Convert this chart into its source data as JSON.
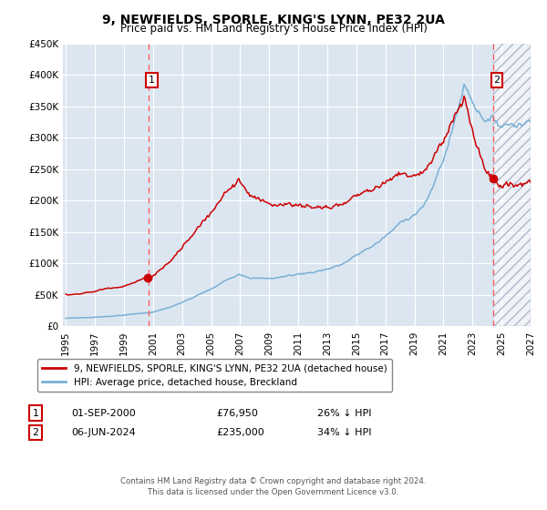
{
  "title": "9, NEWFIELDS, SPORLE, KING'S LYNN, PE32 2UA",
  "subtitle": "Price paid vs. HM Land Registry's House Price Index (HPI)",
  "legend_line1": "9, NEWFIELDS, SPORLE, KING'S LYNN, PE32 2UA (detached house)",
  "legend_line2": "HPI: Average price, detached house, Breckland",
  "annotation1_date": "01-SEP-2000",
  "annotation1_price": "£76,950",
  "annotation1_hpi": "26% ↓ HPI",
  "annotation2_date": "06-JUN-2024",
  "annotation2_price": "£235,000",
  "annotation2_hpi": "34% ↓ HPI",
  "footer1": "Contains HM Land Registry data © Crown copyright and database right 2024.",
  "footer2": "This data is licensed under the Open Government Licence v3.0.",
  "x_start_year": 1995,
  "x_end_year": 2027,
  "y_min": 0,
  "y_max": 450000,
  "y_ticks": [
    0,
    50000,
    100000,
    150000,
    200000,
    250000,
    300000,
    350000,
    400000,
    450000
  ],
  "purchase1_year": 2000.67,
  "purchase1_value": 76950,
  "purchase2_year": 2024.43,
  "purchase2_value": 235000,
  "hpi_color": "#7aafd4",
  "price_color": "#cc0000",
  "bg_color": "#dce6f1",
  "grid_color": "#ffffff",
  "annotation_box_color": "#cc0000",
  "vline_color": "#ff5555"
}
